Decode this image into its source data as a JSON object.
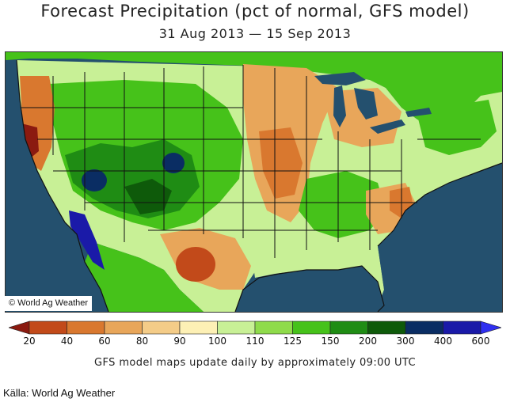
{
  "title": "Forecast Precipitation (pct of normal, GFS model)",
  "subtitle": "31 Aug 2013 — 15 Sep 2013",
  "map": {
    "copyright": "© World Ag Weather"
  },
  "legend": {
    "labels": [
      "20",
      "40",
      "60",
      "80",
      "90",
      "100",
      "110",
      "125",
      "150",
      "200",
      "300",
      "400",
      "600"
    ],
    "colors": [
      "#8b1a10",
      "#c24a1a",
      "#d9782f",
      "#e8a65a",
      "#f4cc88",
      "#fdf0b5",
      "#c8f096",
      "#8fdb4b",
      "#46c21a",
      "#1f8c14",
      "#0e5a0a",
      "#0a2d63",
      "#1a1aa8",
      "#2f2ff0"
    ]
  },
  "footnote": "GFS model maps update daily by approximately 09:00 UTC",
  "source": "Källa: World Ag Weather"
}
